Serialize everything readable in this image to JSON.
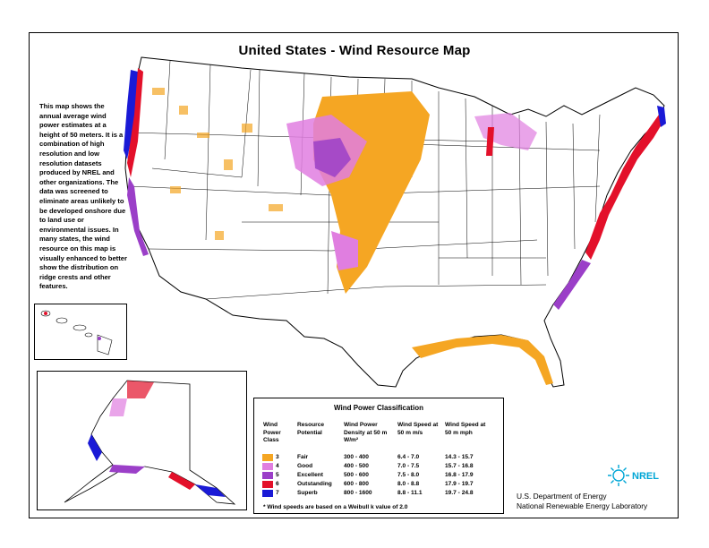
{
  "title": "United States - Wind Resource Map",
  "description": "This map shows the annual average wind power estimates at a height of 50 meters. It is a combination of high resolution and low resolution datasets produced by NREL and other organizations. The data was screened to eliminate areas unlikely to be developed onshore due to land use or environmental issues. In many states, the wind resource on this map is visually enhanced to better show the distribution on ridge crests and other features.",
  "legend": {
    "title": "Wind Power Classification",
    "headers": {
      "class": "Wind Power Class",
      "potential": "Resource Potential",
      "density": "Wind Power Density at 50 m W/m²",
      "speed_ms": "Wind Speed at 50 m m/s",
      "speed_mph": "Wind Speed at 50 m mph"
    },
    "rows": [
      {
        "class": "3",
        "potential": "Fair",
        "density": "300 - 400",
        "ms": "6.4 - 7.0",
        "mph": "14.3 - 15.7",
        "color": "#f5a623"
      },
      {
        "class": "4",
        "potential": "Good",
        "density": "400 - 500",
        "ms": "7.0 - 7.5",
        "mph": "15.7 - 16.8",
        "color": "#e07ee0"
      },
      {
        "class": "5",
        "potential": "Excellent",
        "density": "500 - 600",
        "ms": "7.5 - 8.0",
        "mph": "16.8 - 17.9",
        "color": "#9b3fc8"
      },
      {
        "class": "6",
        "potential": "Outstanding",
        "density": "600 - 800",
        "ms": "8.0 - 8.8",
        "mph": "17.9 - 19.7",
        "color": "#e3102a"
      },
      {
        "class": "7",
        "potential": "Superb",
        "density": "800 - 1600",
        "ms": "8.8 - 11.1",
        "mph": "19.7 - 24.8",
        "color": "#1a1ad6"
      }
    ],
    "footnote": "* Wind speeds are based on a Weibull k value of 2.0"
  },
  "agency": {
    "line1": "U.S. Department of Energy",
    "line2": "National Renewable Energy Laboratory"
  },
  "logo_text": "NREL",
  "colors": {
    "fair": "#f5a623",
    "good": "#e07ee0",
    "excellent": "#9b3fc8",
    "outstanding": "#e3102a",
    "superb": "#1a1ad6"
  }
}
